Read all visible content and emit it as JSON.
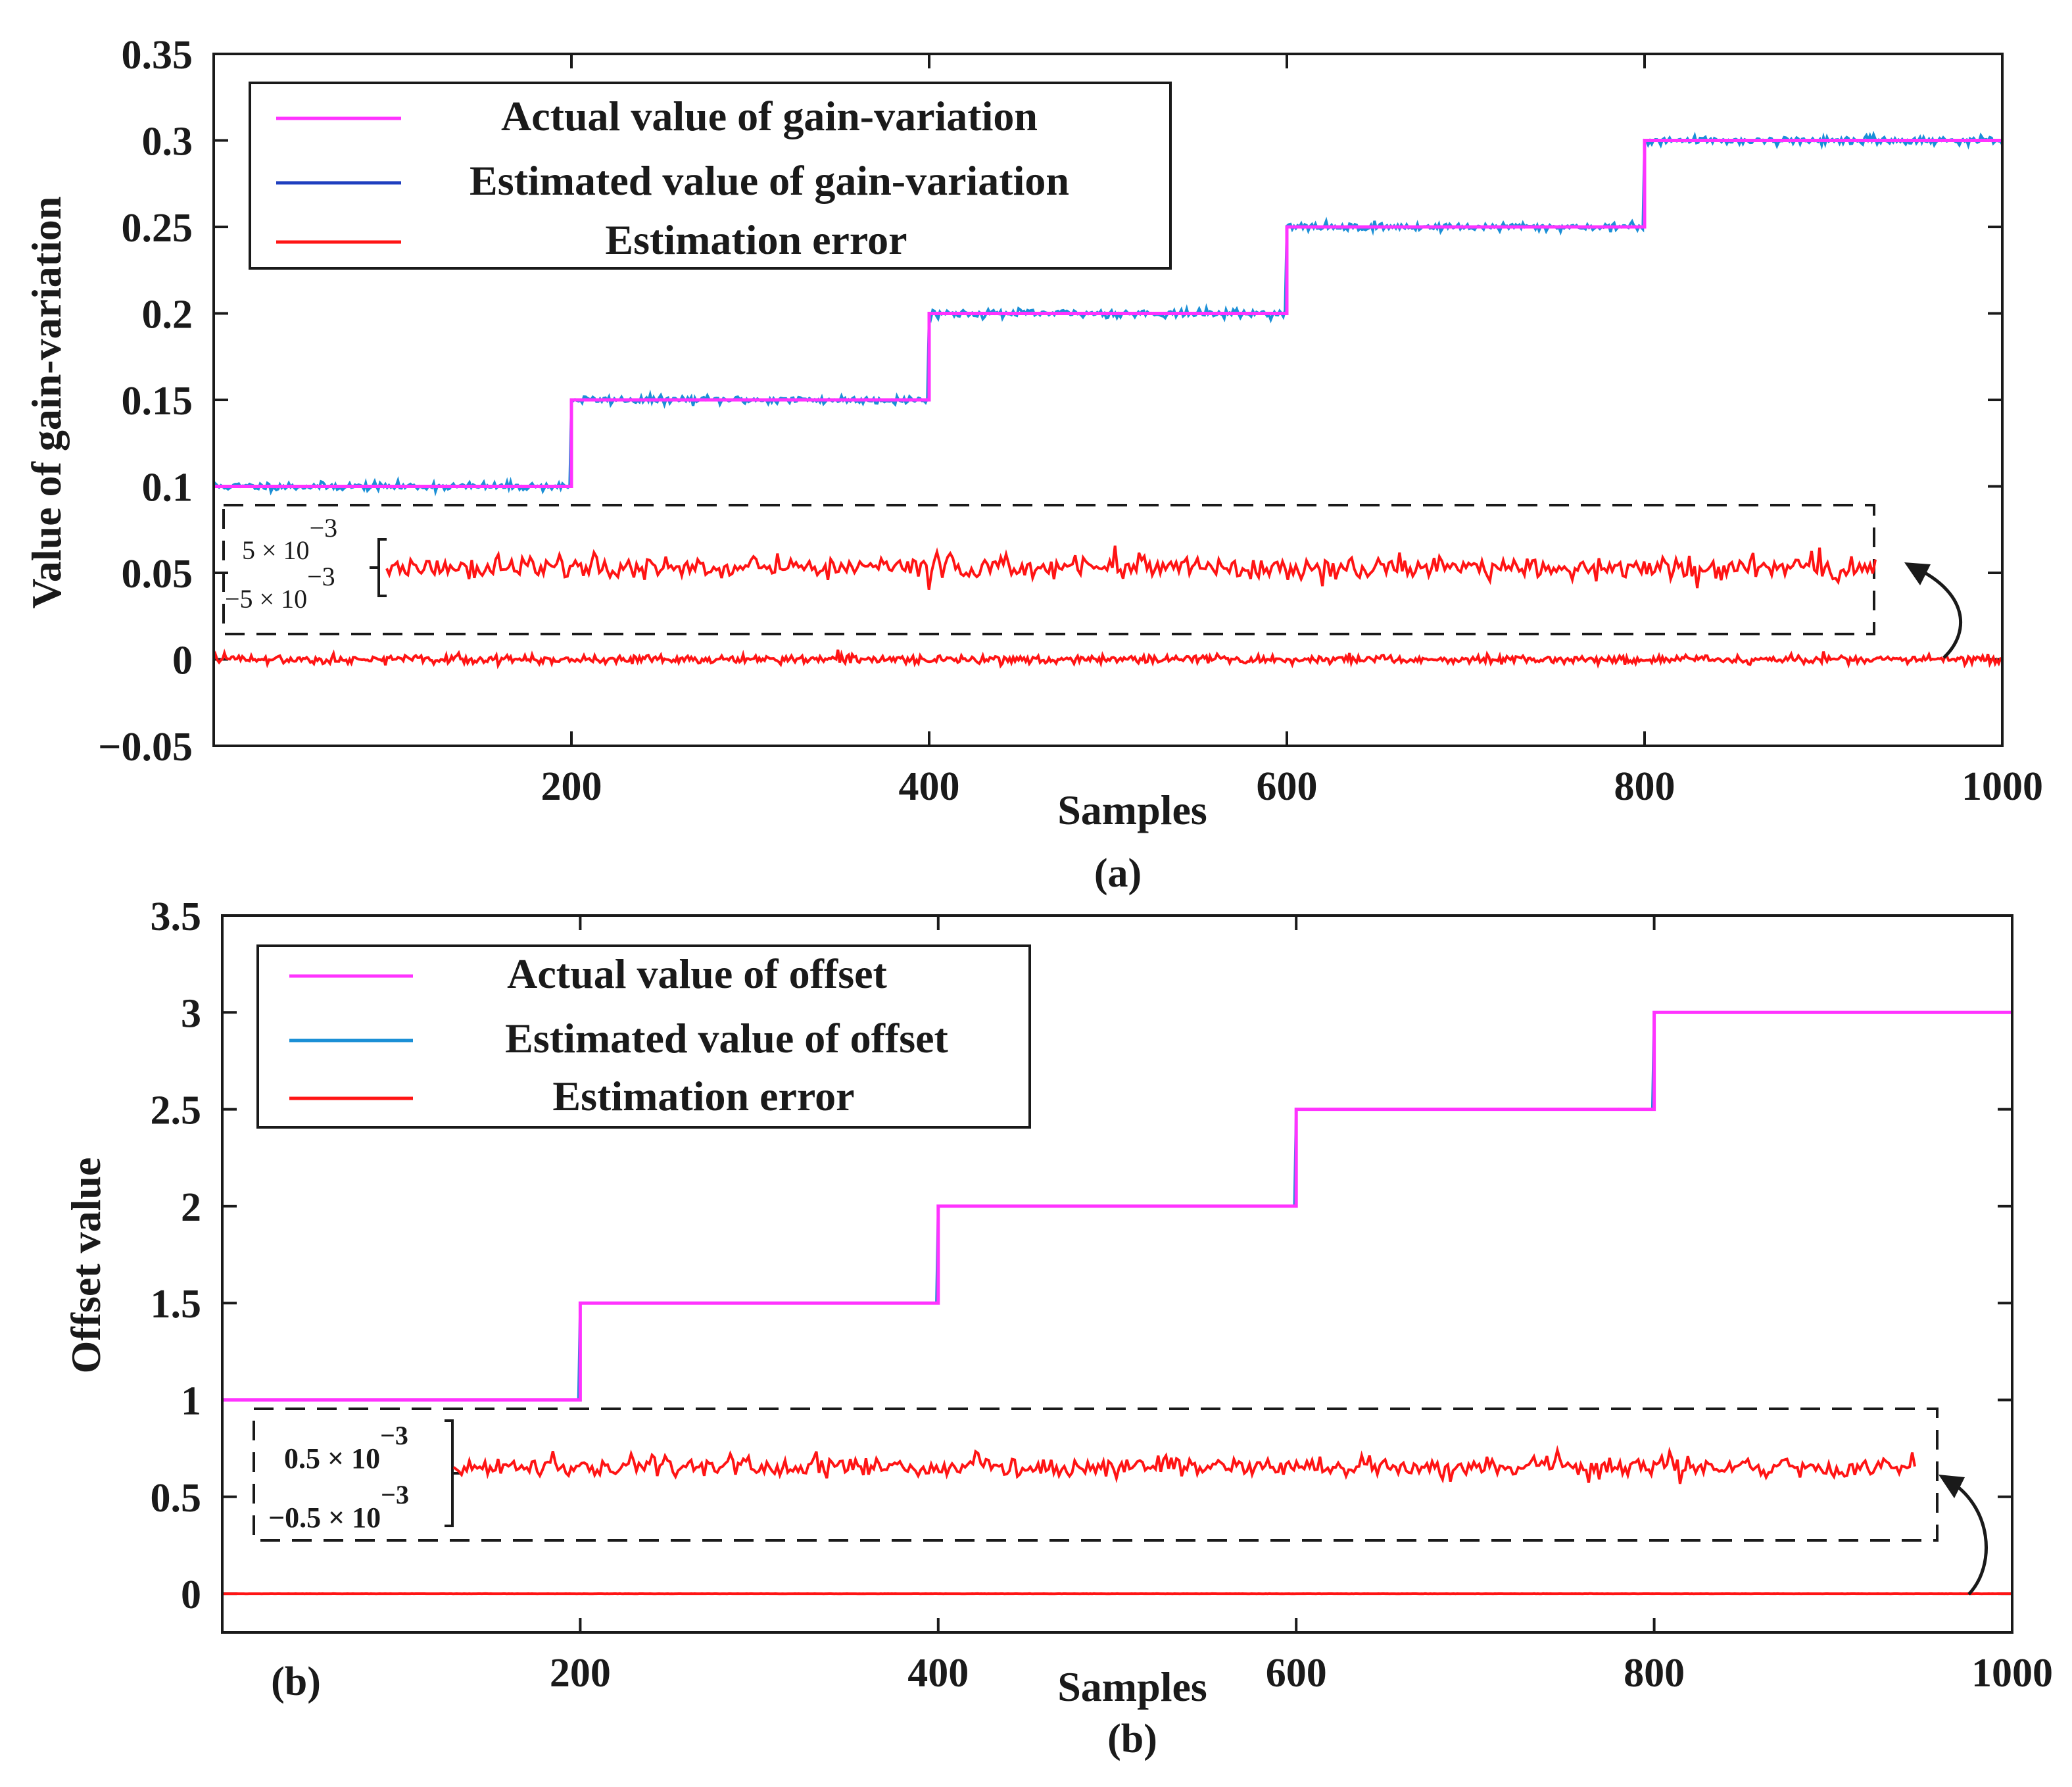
{
  "colors": {
    "actual": "#ff33ff",
    "estimated_a": "#1a8fd6",
    "estimated_legend_a": "#1f3fbf",
    "estimated_b": "#1a8fd6",
    "error": "#ff1414",
    "ink": "#1a1a1a"
  },
  "chart_data": [
    {
      "type": "line",
      "panel": "a",
      "caption": "(a)",
      "xlabel": "Samples",
      "ylabel": "Value of gain-variation",
      "xlim": [
        0,
        1000
      ],
      "ylim": [
        -0.05,
        0.35
      ],
      "xticks": [
        200,
        400,
        600,
        800,
        1000
      ],
      "xtick_labels": [
        "200",
        "400",
        "600",
        "800",
        "1000"
      ],
      "yticks": [
        -0.05,
        0,
        0.05,
        0.1,
        0.15,
        0.2,
        0.25,
        0.3,
        0.35
      ],
      "ytick_labels": [
        "−0.05",
        "0",
        "0.05",
        "0.1",
        "0.15",
        "0.2",
        "0.25",
        "0.3",
        "0.35"
      ],
      "legend": [
        "Actual value of gain-variation",
        "Estimated value of gain-variation",
        "Estimation error"
      ],
      "legend_position": "top-left",
      "series": [
        {
          "name": "Actual value of gain-variation",
          "kind": "step",
          "segments": [
            {
              "x": [
                0,
                200
              ],
              "y": 0.1
            },
            {
              "x": [
                200,
                400
              ],
              "y": 0.15
            },
            {
              "x": [
                400,
                600
              ],
              "y": 0.2
            },
            {
              "x": [
                600,
                800
              ],
              "y": 0.25
            },
            {
              "x": [
                800,
                1000
              ],
              "y": 0.3
            }
          ]
        },
        {
          "name": "Estimated value of gain-variation",
          "kind": "noisy-step",
          "noise_std": 0.0012
        },
        {
          "name": "Estimation error",
          "kind": "noise",
          "mean": 0,
          "noise_std": 0.0012
        }
      ],
      "inset": {
        "upper_label": "5 × 10",
        "upper_exp": "−3",
        "lower_label": "−5 × 10",
        "lower_exp": "−3",
        "description": "zoomed estimation error"
      }
    },
    {
      "type": "line",
      "panel": "b",
      "caption": "(b)",
      "inner_caption": "(b)",
      "xlabel": "Samples",
      "ylabel": "Offset value",
      "xlim": [
        0,
        1000
      ],
      "ylim": [
        -0.2,
        3.5
      ],
      "xticks": [
        200,
        400,
        600,
        800,
        1000
      ],
      "xtick_labels": [
        "200",
        "400",
        "600",
        "800",
        "1000"
      ],
      "yticks": [
        0,
        0.5,
        1,
        1.5,
        2,
        2.5,
        3,
        3.5
      ],
      "ytick_labels": [
        "0",
        "0.5",
        "1",
        "1.5",
        "2",
        "2.5",
        "3",
        "3.5"
      ],
      "legend": [
        "Actual value of offset",
        "Estimated value of offset",
        "Estimation error"
      ],
      "legend_position": "top-left",
      "series": [
        {
          "name": "Actual value of offset",
          "kind": "step",
          "segments": [
            {
              "x": [
                0,
                200
              ],
              "y": 1.0
            },
            {
              "x": [
                200,
                400
              ],
              "y": 1.5
            },
            {
              "x": [
                400,
                600
              ],
              "y": 2.0
            },
            {
              "x": [
                600,
                800
              ],
              "y": 2.5
            },
            {
              "x": [
                800,
                1000
              ],
              "y": 3.0
            }
          ]
        },
        {
          "name": "Estimated value of offset",
          "kind": "noisy-step",
          "noise_std": 0.0002
        },
        {
          "name": "Estimation error",
          "kind": "noise",
          "mean": 0,
          "noise_std": 0.0002
        }
      ],
      "inset": {
        "upper_label": "0.5 × 10",
        "upper_exp": "−3",
        "lower_label": "−0.5 × 10",
        "lower_exp": "−3",
        "description": "zoomed estimation error"
      }
    }
  ]
}
